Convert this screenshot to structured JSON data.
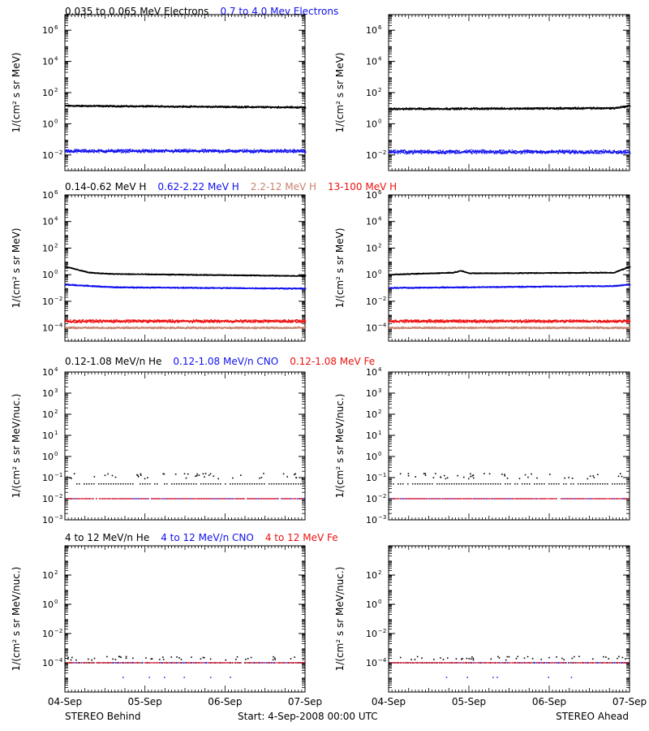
{
  "colors": {
    "black": "#000000",
    "blue": "#1010ee",
    "salmon": "#c8826e",
    "red": "#ee1010"
  },
  "footer": {
    "left": "STEREO Behind",
    "center": "Start:  4-Sep-2008 00:00 UTC",
    "right": "STEREO Ahead"
  },
  "rows": [
    {
      "legend": [
        {
          "text": "0.035 to 0.065 MeV Electrons",
          "color": "black"
        },
        {
          "text": "0.7 to 4.0 Mev Electrons",
          "color": "blue"
        }
      ],
      "ylabel": "1/(cm² s sr MeV)"
    },
    {
      "legend": [
        {
          "text": "0.14-0.62 MeV H",
          "color": "black"
        },
        {
          "text": "0.62-2.22 MeV H",
          "color": "blue"
        },
        {
          "text": "2.2-12 MeV H",
          "color": "salmon"
        },
        {
          "text": "13-100 MeV H",
          "color": "red"
        }
      ],
      "ylabel": "1/(cm² s sr MeV)"
    },
    {
      "legend": [
        {
          "text": "0.12-1.08 MeV/n He",
          "color": "black"
        },
        {
          "text": "0.12-1.08 MeV/n CNO",
          "color": "blue"
        },
        {
          "text": "0.12-1.08 MeV Fe",
          "color": "red"
        }
      ],
      "ylabel": "1/(cm² s sr MeV/nuc.)"
    },
    {
      "legend": [
        {
          "text": "4 to 12 MeV/n He",
          "color": "black"
        },
        {
          "text": "4 to 12 MeV/n CNO",
          "color": "blue"
        },
        {
          "text": "4 to 12 MeV Fe",
          "color": "red"
        }
      ],
      "ylabel": "1/(cm² s sr MeV/nuc.)"
    }
  ],
  "chart_data": [
    {
      "type": "scatter",
      "panel": "row1-behind",
      "ylog": true,
      "ylim_exp": [
        -3,
        7
      ],
      "ytick_exp": [
        -2,
        0,
        2,
        4,
        6
      ],
      "xlim_days": [
        0,
        3
      ],
      "x_ticks": [
        "04-Sep",
        "05-Sep",
        "06-Sep",
        "07-Sep"
      ],
      "series": [
        {
          "name": "0.035 to 0.065 MeV Electrons",
          "color": "black",
          "level_exp": [
            [
              0,
              1.15
            ],
            [
              3,
              1.05
            ]
          ],
          "scatter": 0.06
        },
        {
          "name": "0.7 to 4.0 Mev Electrons",
          "color": "blue",
          "level_exp": [
            [
              0,
              -1.75
            ],
            [
              3,
              -1.75
            ]
          ],
          "scatter": 0.12
        }
      ]
    },
    {
      "type": "scatter",
      "panel": "row1-ahead",
      "ylog": true,
      "ylim_exp": [
        -3,
        7
      ],
      "ytick_exp": [
        -2,
        0,
        2,
        4,
        6
      ],
      "xlim_days": [
        0,
        3
      ],
      "x_ticks": [
        "04-Sep",
        "05-Sep",
        "06-Sep",
        "07-Sep"
      ],
      "series": [
        {
          "name": "0.035 to 0.065 MeV Electrons",
          "color": "black",
          "level_exp": [
            [
              0,
              0.95
            ],
            [
              2.8,
              1.0
            ],
            [
              3,
              1.15
            ]
          ],
          "scatter": 0.07
        },
        {
          "name": "0.7 to 4.0 Mev Electrons",
          "color": "blue",
          "level_exp": [
            [
              0,
              -1.8
            ],
            [
              3,
              -1.8
            ]
          ],
          "scatter": 0.14
        }
      ]
    },
    {
      "type": "scatter",
      "panel": "row2-behind",
      "ylog": true,
      "ylim_exp": [
        -5,
        6
      ],
      "ytick_exp": [
        -4,
        -2,
        0,
        2,
        4,
        6
      ],
      "xlim_days": [
        0,
        3
      ],
      "x_ticks": [
        "04-Sep",
        "05-Sep",
        "06-Sep",
        "07-Sep"
      ],
      "series": [
        {
          "name": "0.14-0.62 MeV H",
          "color": "black",
          "level_exp": [
            [
              0,
              0.6
            ],
            [
              0.3,
              0.15
            ],
            [
              0.6,
              0.05
            ],
            [
              3,
              -0.1
            ]
          ],
          "scatter": 0.04
        },
        {
          "name": "0.62-2.22 MeV H",
          "color": "blue",
          "level_exp": [
            [
              0,
              -0.75
            ],
            [
              0.6,
              -0.95
            ],
            [
              3,
              -1.05
            ]
          ],
          "scatter": 0.05
        },
        {
          "name": "2.2-12 MeV H",
          "color": "salmon",
          "level_exp": [
            [
              0,
              -4.0
            ],
            [
              3,
              -4.0
            ]
          ],
          "scatter": 0.08
        },
        {
          "name": "13-100 MeV H",
          "color": "red",
          "level_exp": [
            [
              0,
              -3.5
            ],
            [
              3,
              -3.5
            ]
          ],
          "scatter": 0.12
        }
      ]
    },
    {
      "type": "scatter",
      "panel": "row2-ahead",
      "ylog": true,
      "ylim_exp": [
        -5,
        6
      ],
      "ytick_exp": [
        -4,
        -2,
        0,
        2,
        4,
        6
      ],
      "xlim_days": [
        0,
        3
      ],
      "x_ticks": [
        "04-Sep",
        "05-Sep",
        "06-Sep",
        "07-Sep"
      ],
      "series": [
        {
          "name": "0.14-0.62 MeV H",
          "color": "black",
          "level_exp": [
            [
              0,
              0.0
            ],
            [
              0.8,
              0.15
            ],
            [
              0.9,
              0.3
            ],
            [
              1.0,
              0.1
            ],
            [
              2.8,
              0.15
            ],
            [
              3,
              0.6
            ]
          ],
          "scatter": 0.04
        },
        {
          "name": "0.62-2.22 MeV H",
          "color": "blue",
          "level_exp": [
            [
              0,
              -1.0
            ],
            [
              2.8,
              -0.85
            ],
            [
              3,
              -0.75
            ]
          ],
          "scatter": 0.05
        },
        {
          "name": "2.2-12 MeV H",
          "color": "salmon",
          "level_exp": [
            [
              0,
              -4.0
            ],
            [
              3,
              -4.0
            ]
          ],
          "scatter": 0.08
        },
        {
          "name": "13-100 MeV H",
          "color": "red",
          "level_exp": [
            [
              0,
              -3.5
            ],
            [
              3,
              -3.5
            ]
          ],
          "scatter": 0.12
        }
      ]
    },
    {
      "type": "scatter",
      "panel": "row3-behind",
      "ylog": true,
      "ylim_exp": [
        -3,
        4
      ],
      "ytick_exp": [
        -3,
        -2,
        -1,
        0,
        1,
        2,
        3,
        4
      ],
      "xlim_days": [
        0,
        3
      ],
      "x_ticks": [
        "04-Sep",
        "05-Sep",
        "06-Sep",
        "07-Sep"
      ],
      "series": [
        {
          "name": "0.12-1.08 MeV/n He",
          "color": "black",
          "level_exp": [
            [
              0,
              -1.3
            ],
            [
              3,
              -1.3
            ]
          ],
          "upper_exp": -0.9
        },
        {
          "name": "0.12-1.08 MeV/n CNO",
          "color": "blue",
          "level_exp": [
            [
              0,
              -2.0
            ],
            [
              3,
              -2.0
            ]
          ]
        },
        {
          "name": "0.12-1.08 MeV Fe",
          "color": "red",
          "level_exp": [
            [
              0,
              -2.0
            ],
            [
              3,
              -2.0
            ]
          ]
        }
      ]
    },
    {
      "type": "scatter",
      "panel": "row3-ahead",
      "ylog": true,
      "ylim_exp": [
        -3,
        4
      ],
      "ytick_exp": [
        -3,
        -2,
        -1,
        0,
        1,
        2,
        3,
        4
      ],
      "xlim_days": [
        0,
        3
      ],
      "x_ticks": [
        "04-Sep",
        "05-Sep",
        "06-Sep",
        "07-Sep"
      ],
      "series": [
        {
          "name": "0.12-1.08 MeV/n He",
          "color": "black",
          "level_exp": [
            [
              0,
              -1.3
            ],
            [
              3,
              -1.3
            ]
          ],
          "upper_exp": -0.9
        },
        {
          "name": "0.12-1.08 MeV/n CNO",
          "color": "blue",
          "level_exp": [
            [
              0,
              -2.0
            ],
            [
              3,
              -2.0
            ]
          ]
        },
        {
          "name": "0.12-1.08 MeV Fe",
          "color": "red",
          "level_exp": [
            [
              0,
              -2.0
            ],
            [
              3,
              -2.0
            ]
          ]
        }
      ]
    },
    {
      "type": "scatter",
      "panel": "row4-behind",
      "ylog": true,
      "ylim_exp": [
        -6,
        4
      ],
      "ytick_exp": [
        -4,
        -2,
        0,
        2
      ],
      "xlim_days": [
        0,
        3
      ],
      "x_ticks": [
        "04-Sep",
        "05-Sep",
        "06-Sep",
        "07-Sep"
      ],
      "series": [
        {
          "name": "4 to 12 MeV/n He",
          "color": "black",
          "level_exp": [
            [
              0,
              -4.0
            ],
            [
              3,
              -4.0
            ]
          ],
          "upper_exp": -3.65
        },
        {
          "name": "4 to 12 MeV/n CNO",
          "color": "blue",
          "level_exp": [
            [
              0,
              -4.0
            ],
            [
              3,
              -4.0
            ]
          ],
          "lower_exp": -5.0
        },
        {
          "name": "4 to 12 MeV Fe",
          "color": "red",
          "level_exp": [
            [
              0,
              -4.0
            ],
            [
              3,
              -4.0
            ]
          ]
        }
      ]
    },
    {
      "type": "scatter",
      "panel": "row4-ahead",
      "ylog": true,
      "ylim_exp": [
        -6,
        4
      ],
      "ytick_exp": [
        -4,
        -2,
        0,
        2
      ],
      "xlim_days": [
        0,
        3
      ],
      "x_ticks": [
        "04-Sep",
        "05-Sep",
        "06-Sep",
        "07-Sep"
      ],
      "series": [
        {
          "name": "4 to 12 MeV/n He",
          "color": "black",
          "level_exp": [
            [
              0,
              -4.0
            ],
            [
              3,
              -4.0
            ]
          ],
          "upper_exp": -3.65
        },
        {
          "name": "4 to 12 MeV/n CNO",
          "color": "blue",
          "level_exp": [
            [
              0,
              -4.0
            ],
            [
              3,
              -4.0
            ]
          ],
          "lower_exp": -5.0
        },
        {
          "name": "4 to 12 MeV Fe",
          "color": "red",
          "level_exp": [
            [
              0,
              -4.0
            ],
            [
              3,
              -4.0
            ]
          ]
        }
      ]
    }
  ]
}
